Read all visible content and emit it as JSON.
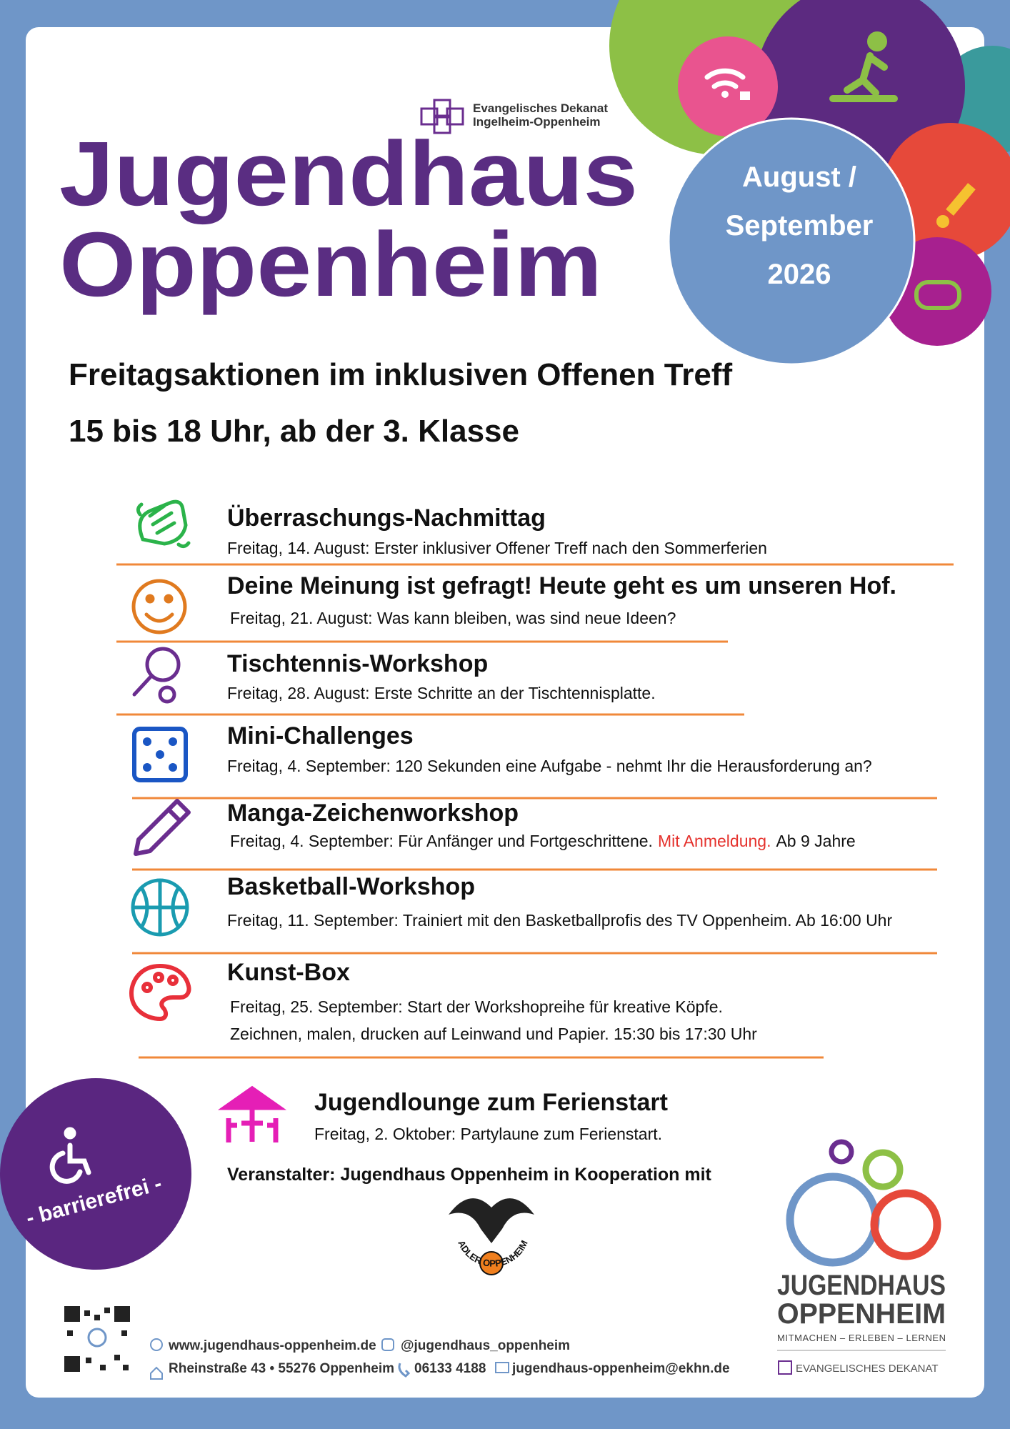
{
  "header": {
    "org_line1": "Evangelisches Dekanat",
    "org_line2": "Ingelheim-Oppenheim",
    "title_line1": "Jugendhaus",
    "title_line2": "Oppenheim",
    "period": [
      "August /",
      "September",
      "2026"
    ]
  },
  "intro": {
    "line1": "Freitagsaktionen im inklusiven Offenen Treff",
    "line2": "15 bis 18 Uhr, ab der 3. Klasse"
  },
  "events": [
    {
      "title": "Überraschungs-Nachmittag",
      "description": [
        "Freitag, 14. August: Erster inklusiver Offener Treff nach den Sommerferien"
      ]
    },
    {
      "title": "Deine Meinung ist gefragt! Heute geht es um unseren Hof.",
      "description": [
        "Freitag, 21. August: Was kann bleiben, was sind neue Ideen?"
      ]
    },
    {
      "title": "Tischtennis-Workshop",
      "description": [
        "Freitag, 28. August: Erste Schritte an der Tischtennisplatte."
      ]
    },
    {
      "title": "Mini-Challenges",
      "description": [
        "Freitag, 4. September: 120 Sekunden eine Aufgabe - nehmt Ihr die Herausforderung an?"
      ]
    },
    {
      "title": "Manga-Zeichenworkshop",
      "description": [
        "Freitag, 4. September: Für Anfänger und Fortgeschrittene.",
        "Mit Anmeldung.",
        "Ab 9 Jahre"
      ]
    },
    {
      "title": "Basketball-Workshop",
      "description": [
        "Freitag, 11. September: Trainiert mit den Basketballprofis des TV Oppenheim. Ab 16:00 Uhr"
      ]
    },
    {
      "title": "Kunst-Box",
      "description": [
        "Freitag, 25. September: Start der Workshopreihe für kreative Köpfe.",
        "Zeichnen, malen, drucken auf Leinwand und Papier. 15:30 bis 17:30 Uhr"
      ]
    }
  ],
  "lounge": {
    "title": "Jugendlounge zum Ferienstart",
    "description": "Freitag, 2. Oktober: Partylaune zum Ferienstart."
  },
  "organizer": "Veranstalter: Jugendhaus Oppenheim in Kooperation mit",
  "barrier_free": "- barrierefrei -",
  "partner_logo": "ADLER OPPENHEIM",
  "logo": {
    "line1": "JUGENDHAUS",
    "line2": "OPPENHEIM",
    "tagline": "MITMACHEN – ERLEBEN – LERNEN",
    "org": "EVANGELISCHES DEKANAT"
  },
  "contact": {
    "website": "www.jugendhaus-oppenheim.de",
    "instagram": "@jugendhaus_oppenheim",
    "address": "Rheinstraße 43 • 55276 Oppenheim",
    "phone": "06133 4188",
    "email": "jugendhaus-oppenheim@ekhn.de"
  }
}
